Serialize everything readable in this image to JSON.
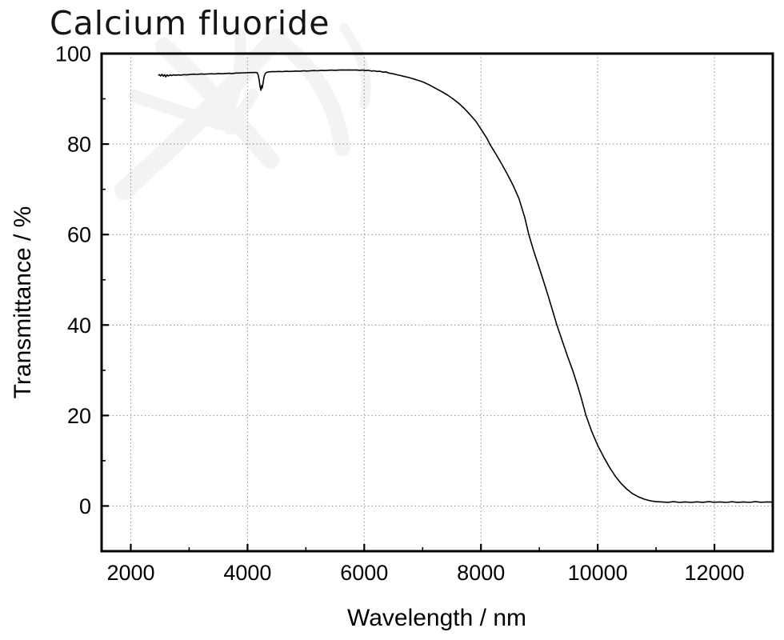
{
  "page": {
    "background": "#ffffff"
  },
  "colors": {
    "curve": "#000000",
    "frame": "#000000",
    "grid": "#858585",
    "tick": "#000000",
    "text": "#000000",
    "watermark": "#f3f3f3"
  },
  "chart_data": {
    "type": "line",
    "title": "Calcium fluoride",
    "xlabel": "Wavelength / nm",
    "ylabel": "Transmittance / %",
    "xlim": [
      1500,
      13000
    ],
    "ylim": [
      -10,
      100
    ],
    "x_major_ticks": [
      2000,
      4000,
      6000,
      8000,
      10000,
      12000
    ],
    "x_minor_ticks": [
      3000,
      5000,
      7000,
      9000,
      11000
    ],
    "y_major_ticks": [
      0,
      20,
      40,
      60,
      80,
      100
    ],
    "y_minor_ticks": [
      10,
      30,
      50,
      70,
      90
    ],
    "grid": {
      "style": "dotted",
      "x_lines": [
        2000,
        4000,
        6000,
        8000,
        10000,
        12000
      ],
      "y_lines": [
        0,
        20,
        40,
        60,
        80
      ]
    },
    "legend": "none",
    "series_count": 1,
    "points": [
      [
        2470,
        95.2
      ],
      [
        2490,
        95.35
      ],
      [
        2510,
        95.05
      ],
      [
        2535,
        95.4
      ],
      [
        2560,
        95.0
      ],
      [
        2580,
        95.35
      ],
      [
        2600,
        94.85
      ],
      [
        2620,
        95.3
      ],
      [
        2645,
        95.05
      ],
      [
        2670,
        95.3
      ],
      [
        2700,
        95.15
      ],
      [
        2730,
        95.3
      ],
      [
        2770,
        95.2
      ],
      [
        2810,
        95.3
      ],
      [
        2860,
        95.25
      ],
      [
        2910,
        95.35
      ],
      [
        2960,
        95.3
      ],
      [
        3020,
        95.4
      ],
      [
        3080,
        95.45
      ],
      [
        3140,
        95.4
      ],
      [
        3200,
        95.5
      ],
      [
        3260,
        95.45
      ],
      [
        3320,
        95.5
      ],
      [
        3380,
        95.55
      ],
      [
        3440,
        95.5
      ],
      [
        3500,
        95.6
      ],
      [
        3560,
        95.55
      ],
      [
        3620,
        95.6
      ],
      [
        3680,
        95.65
      ],
      [
        3740,
        95.6
      ],
      [
        3800,
        95.7
      ],
      [
        3860,
        95.7
      ],
      [
        3920,
        95.75
      ],
      [
        3980,
        95.75
      ],
      [
        4040,
        95.8
      ],
      [
        4100,
        95.8
      ],
      [
        4140,
        95.85
      ],
      [
        4165,
        95.75
      ],
      [
        4185,
        95.2
      ],
      [
        4200,
        94.1
      ],
      [
        4215,
        92.7
      ],
      [
        4230,
        91.9
      ],
      [
        4243,
        92.9
      ],
      [
        4253,
        92.4
      ],
      [
        4268,
        93.6
      ],
      [
        4283,
        94.8
      ],
      [
        4300,
        95.5
      ],
      [
        4325,
        95.85
      ],
      [
        4360,
        95.95
      ],
      [
        4420,
        96.0
      ],
      [
        4480,
        96.0
      ],
      [
        4540,
        96.05
      ],
      [
        4600,
        96.0
      ],
      [
        4660,
        96.1
      ],
      [
        4720,
        96.05
      ],
      [
        4780,
        96.1
      ],
      [
        4840,
        96.15
      ],
      [
        4900,
        96.1
      ],
      [
        4960,
        96.2
      ],
      [
        5020,
        96.15
      ],
      [
        5080,
        96.2
      ],
      [
        5140,
        96.25
      ],
      [
        5200,
        96.2
      ],
      [
        5260,
        96.3
      ],
      [
        5320,
        96.25
      ],
      [
        5380,
        96.3
      ],
      [
        5440,
        96.35
      ],
      [
        5500,
        96.3
      ],
      [
        5560,
        96.35
      ],
      [
        5620,
        96.4
      ],
      [
        5680,
        96.35
      ],
      [
        5740,
        96.4
      ],
      [
        5800,
        96.35
      ],
      [
        5860,
        96.4
      ],
      [
        5920,
        96.3
      ],
      [
        5970,
        96.35
      ],
      [
        6020,
        96.25
      ],
      [
        6070,
        96.3
      ],
      [
        6120,
        96.15
      ],
      [
        6170,
        96.2
      ],
      [
        6220,
        96.05
      ],
      [
        6270,
        96.1
      ],
      [
        6320,
        95.9
      ],
      [
        6370,
        95.95
      ],
      [
        6420,
        95.7
      ],
      [
        6470,
        95.6
      ],
      [
        6520,
        95.45
      ],
      [
        6570,
        95.3
      ],
      [
        6620,
        95.15
      ],
      [
        6670,
        95.0
      ],
      [
        6720,
        94.85
      ],
      [
        6770,
        94.7
      ],
      [
        6820,
        94.5
      ],
      [
        6870,
        94.3
      ],
      [
        6920,
        94.1
      ],
      [
        6970,
        93.9
      ],
      [
        7020,
        93.65
      ],
      [
        7120,
        93.05
      ],
      [
        7220,
        92.35
      ],
      [
        7320,
        91.65
      ],
      [
        7420,
        90.9
      ],
      [
        7520,
        90.0
      ],
      [
        7620,
        89.0
      ],
      [
        7720,
        87.8
      ],
      [
        7820,
        86.4
      ],
      [
        7920,
        84.9
      ],
      [
        8000,
        83.3
      ],
      [
        8100,
        81.3
      ],
      [
        8150,
        80.0
      ],
      [
        8250,
        77.9
      ],
      [
        8350,
        75.7
      ],
      [
        8450,
        73.4
      ],
      [
        8550,
        70.9
      ],
      [
        8650,
        68.0
      ],
      [
        8750,
        63.8
      ],
      [
        8820,
        60.0
      ],
      [
        8900,
        56.5
      ],
      [
        8990,
        53.0
      ],
      [
        9065,
        50.0
      ],
      [
        9150,
        46.5
      ],
      [
        9220,
        43.5
      ],
      [
        9300,
        40.0
      ],
      [
        9400,
        36.2
      ],
      [
        9480,
        33.2
      ],
      [
        9570,
        30.0
      ],
      [
        9650,
        26.8
      ],
      [
        9720,
        23.8
      ],
      [
        9800,
        20.0
      ],
      [
        9900,
        16.4
      ],
      [
        10000,
        13.4
      ],
      [
        10100,
        10.9
      ],
      [
        10200,
        8.6
      ],
      [
        10300,
        6.6
      ],
      [
        10400,
        5.0
      ],
      [
        10500,
        3.7
      ],
      [
        10600,
        2.7
      ],
      [
        10700,
        2.0
      ],
      [
        10800,
        1.5
      ],
      [
        10900,
        1.15
      ],
      [
        11000,
        0.95
      ],
      [
        11100,
        0.9
      ],
      [
        11200,
        0.8
      ],
      [
        11300,
        0.95
      ],
      [
        11400,
        0.78
      ],
      [
        11500,
        0.9
      ],
      [
        11600,
        0.78
      ],
      [
        11700,
        0.92
      ],
      [
        11800,
        0.8
      ],
      [
        11900,
        0.95
      ],
      [
        12000,
        0.82
      ],
      [
        12100,
        0.9
      ],
      [
        12200,
        0.78
      ],
      [
        12300,
        0.93
      ],
      [
        12400,
        0.8
      ],
      [
        12500,
        0.9
      ],
      [
        12600,
        0.78
      ],
      [
        12700,
        0.95
      ],
      [
        12800,
        0.82
      ],
      [
        12900,
        0.9
      ],
      [
        13000,
        0.85
      ]
    ]
  }
}
